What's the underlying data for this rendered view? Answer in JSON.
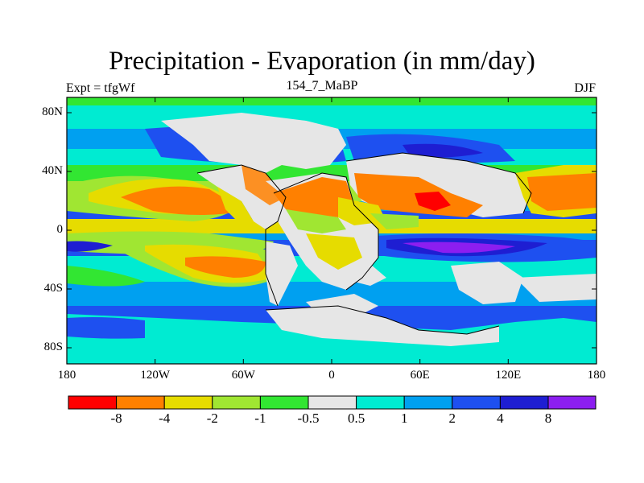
{
  "header": {
    "title": "Precipitation - Evaporation (in mm/day)",
    "subtitle_left": "Expt = tfgWf",
    "subtitle_center": "154_7_MaBP",
    "subtitle_right": "DJF"
  },
  "axes": {
    "x_ticks": [
      "180",
      "120W",
      "60W",
      "0",
      "60E",
      "120E",
      "180"
    ],
    "y_ticks": [
      "80N",
      "40N",
      "0",
      "40S",
      "80S"
    ]
  },
  "colorbar": {
    "colors": [
      "#ff0000",
      "#ff8000",
      "#e6dc00",
      "#a0e632",
      "#32e632",
      "#e6e6e6",
      "#00ebd2",
      "#00a0f0",
      "#1e50f0",
      "#1e1ed2",
      "#8c1ef0"
    ],
    "labels": [
      "-8",
      "-4",
      "-2",
      "-1",
      "-0.5",
      "0.5",
      "1",
      "2",
      "4",
      "8"
    ]
  }
}
